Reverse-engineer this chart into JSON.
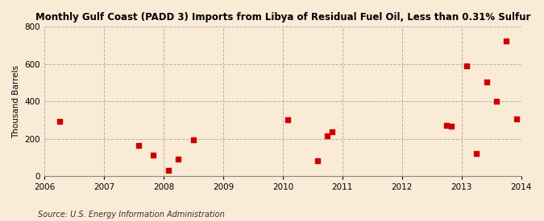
{
  "title": "Monthly Gulf Coast (PADD 3) Imports from Libya of Residual Fuel Oil, Less than 0.31% Sulfur",
  "ylabel": "Thousand Barrels",
  "source": "Source: U.S. Energy Information Administration",
  "background_color": "#faebd7",
  "plot_bg_color": "#faebd7",
  "point_color": "#cc0000",
  "xlim": [
    2006.0,
    2014.0
  ],
  "ylim": [
    0,
    800
  ],
  "yticks": [
    0,
    200,
    400,
    600,
    800
  ],
  "xticks": [
    2006,
    2007,
    2008,
    2009,
    2010,
    2011,
    2012,
    2013,
    2014
  ],
  "data_x": [
    2006.25,
    2007.58,
    2007.83,
    2008.08,
    2008.25,
    2008.5,
    2010.08,
    2010.58,
    2010.75,
    2010.83,
    2012.75,
    2012.83,
    2013.08,
    2013.25,
    2013.42,
    2013.58,
    2013.75,
    2013.92
  ],
  "data_y": [
    295,
    165,
    110,
    28,
    90,
    193,
    300,
    80,
    215,
    235,
    270,
    268,
    590,
    120,
    505,
    400,
    726,
    305
  ]
}
